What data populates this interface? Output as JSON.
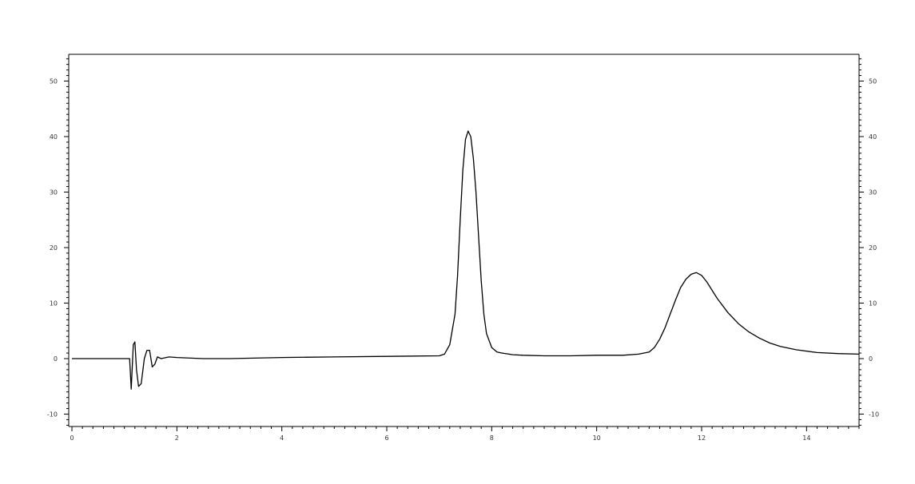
{
  "chart_data": {
    "type": "line",
    "title": "",
    "xlabel": "",
    "ylabel": "",
    "xlim": [
      0,
      15
    ],
    "ylim": [
      -12,
      55
    ],
    "grid": false,
    "legend": "none",
    "x_ticks": [
      0,
      2,
      4,
      6,
      8,
      10,
      12,
      14
    ],
    "x_tick_labels": [
      "0",
      "2",
      "4",
      "6",
      "8",
      "10",
      "12",
      "14"
    ],
    "y_ticks": [
      -10,
      0,
      10,
      20,
      30,
      40,
      50
    ],
    "y_tick_labels": [
      "-10",
      "0",
      "10",
      "20",
      "30",
      "40",
      "50"
    ],
    "right_y_tick_labels": [
      "-10",
      "0",
      "10",
      "20",
      "30",
      "40",
      "50"
    ],
    "line_color": "#000000",
    "series": [
      {
        "x": [
          0,
          0.5,
          1.0,
          1.1,
          1.13,
          1.17,
          1.2,
          1.23,
          1.27,
          1.32,
          1.38,
          1.43,
          1.48,
          1.53,
          1.58,
          1.63,
          1.7,
          1.85,
          2.0,
          2.5,
          3.0,
          4.0,
          5.0,
          6.0,
          7.0,
          7.1,
          7.2,
          7.3,
          7.35,
          7.4,
          7.45,
          7.5,
          7.55,
          7.6,
          7.65,
          7.7,
          7.75,
          7.8,
          7.85,
          7.9,
          8.0,
          8.1,
          8.2,
          8.4,
          8.6,
          9.0,
          9.5,
          10.0,
          10.5,
          10.8,
          11.0,
          11.1,
          11.2,
          11.3,
          11.4,
          11.5,
          11.6,
          11.7,
          11.8,
          11.9,
          12.0,
          12.1,
          12.2,
          12.3,
          12.5,
          12.7,
          12.9,
          13.1,
          13.3,
          13.5,
          13.8,
          14.2,
          14.6,
          15.0
        ],
        "y": [
          0,
          0,
          0,
          0,
          -5.5,
          2.5,
          3,
          -2,
          -5,
          -4.5,
          0,
          1.5,
          1.5,
          -1.5,
          -1,
          0.3,
          0,
          0.3,
          0.2,
          0,
          0,
          0.2,
          0.3,
          0.4,
          0.5,
          0.8,
          2.5,
          8,
          15,
          25,
          34,
          39.5,
          41,
          40,
          36,
          30,
          22,
          14,
          8,
          4.5,
          2,
          1.2,
          1,
          0.7,
          0.6,
          0.5,
          0.5,
          0.6,
          0.6,
          0.8,
          1.2,
          2,
          3.5,
          5.5,
          8,
          10.5,
          12.8,
          14.3,
          15.2,
          15.5,
          15,
          13.8,
          12.3,
          10.8,
          8.3,
          6.3,
          4.8,
          3.7,
          2.8,
          2.2,
          1.6,
          1.1,
          0.9,
          0.8
        ]
      }
    ]
  }
}
